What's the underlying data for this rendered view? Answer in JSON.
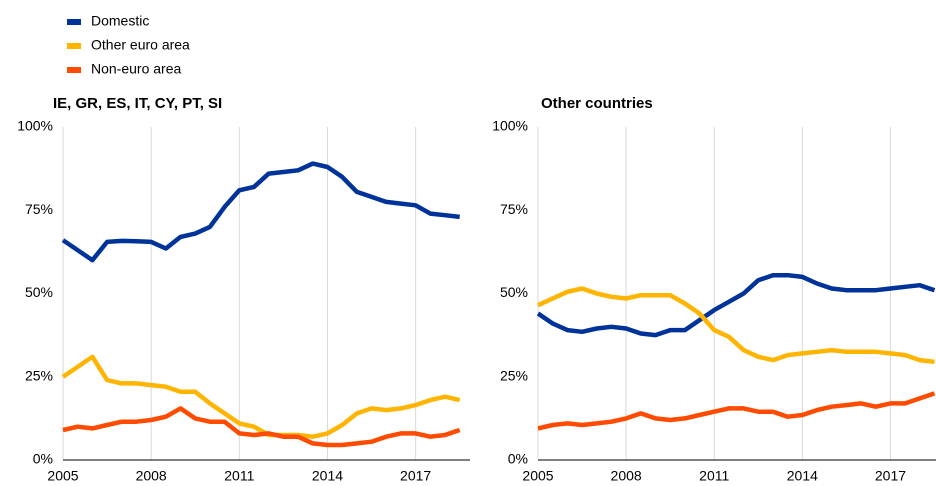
{
  "chart_data": [
    {
      "type": "line",
      "title": "IE, GR, ES, IT, CY, PT, SI",
      "x": [
        2005,
        2005.5,
        2006,
        2006.5,
        2007,
        2007.5,
        2008,
        2008.5,
        2009,
        2009.5,
        2010,
        2010.5,
        2011,
        2011.5,
        2012,
        2012.5,
        2013,
        2013.5,
        2014,
        2014.5,
        2015,
        2015.5,
        2016,
        2016.5,
        2017,
        2017.5,
        2018,
        2018.5
      ],
      "xlim": [
        2005,
        2018.85
      ],
      "xticks": [
        2005,
        2008,
        2011,
        2014,
        2017
      ],
      "ylim": [
        0,
        100
      ],
      "yticks": [
        {
          "value": 0,
          "label": "0%"
        },
        {
          "value": 25,
          "label": "25%"
        },
        {
          "value": 50,
          "label": "50%"
        },
        {
          "value": 75,
          "label": "75%"
        },
        {
          "value": 100,
          "label": "100%"
        }
      ],
      "grid": true,
      "series": [
        {
          "name": "Domestic",
          "color": "#003399",
          "values": [
            66,
            63,
            60,
            65.5,
            65.8,
            65.7,
            65.5,
            63.5,
            67,
            68,
            70,
            76,
            81,
            82,
            86,
            86.5,
            87,
            89,
            88,
            85,
            80.5,
            79,
            77.5,
            77,
            76.5,
            74,
            73.5,
            73
          ]
        },
        {
          "name": "Other euro area",
          "color": "#ffb400",
          "values": [
            25,
            28,
            31,
            24,
            23,
            23,
            22.5,
            22,
            20.5,
            20.5,
            17,
            14,
            11,
            10,
            7.5,
            7.5,
            7.5,
            7,
            8,
            10.5,
            14,
            15.5,
            15,
            15.5,
            16.5,
            18,
            19,
            18
          ]
        },
        {
          "name": "Non-euro area",
          "color": "#ff4b00",
          "values": [
            9,
            10,
            9.5,
            10.5,
            11.5,
            11.5,
            12,
            13,
            15.5,
            12.5,
            11.5,
            11.5,
            8,
            7.5,
            8,
            7,
            7,
            5,
            4.5,
            4.5,
            5,
            5.5,
            7,
            8,
            8,
            7,
            7.5,
            9
          ]
        }
      ]
    },
    {
      "type": "line",
      "title": "Other countries",
      "x": [
        2005,
        2005.5,
        2006,
        2006.5,
        2007,
        2007.5,
        2008,
        2008.5,
        2009,
        2009.5,
        2010,
        2010.5,
        2011,
        2011.5,
        2012,
        2012.5,
        2013,
        2013.5,
        2014,
        2014.5,
        2015,
        2015.5,
        2016,
        2016.5,
        2017,
        2017.5,
        2018,
        2018.5
      ],
      "xlim": [
        2005,
        2018.55
      ],
      "xticks": [
        2005,
        2008,
        2011,
        2014,
        2017
      ],
      "ylim": [
        0,
        100
      ],
      "yticks": [
        {
          "value": 0,
          "label": "0%"
        },
        {
          "value": 25,
          "label": "25%"
        },
        {
          "value": 50,
          "label": "50%"
        },
        {
          "value": 75,
          "label": "75%"
        },
        {
          "value": 100,
          "label": "100%"
        }
      ],
      "grid": true,
      "series": [
        {
          "color": "#003399",
          "values": [
            44,
            41,
            39,
            38.5,
            39.5,
            40,
            39.5,
            38,
            37.5,
            39,
            39,
            42,
            45,
            47.5,
            50,
            54,
            55.5,
            55.5,
            55,
            53,
            51.5,
            51,
            51,
            51,
            51.5,
            52,
            52.5,
            51
          ]
        },
        {
          "color": "#ffb400",
          "values": [
            46.5,
            48.5,
            50.5,
            51.5,
            50,
            49,
            48.5,
            49.5,
            49.5,
            49.5,
            47,
            44,
            39,
            37,
            33,
            31,
            30,
            31.5,
            32,
            32.5,
            33,
            32.5,
            32.5,
            32.5,
            32,
            31.5,
            30,
            29.5
          ]
        },
        {
          "color": "#ff4b00",
          "values": [
            9.5,
            10.5,
            11,
            10.5,
            11,
            11.5,
            12.5,
            14,
            12.5,
            12,
            12.5,
            13.5,
            14.5,
            15.5,
            15.5,
            14.5,
            14.5,
            13,
            13.5,
            15,
            16,
            16.5,
            17,
            16,
            17,
            17,
            18.5,
            20
          ]
        }
      ]
    }
  ]
}
